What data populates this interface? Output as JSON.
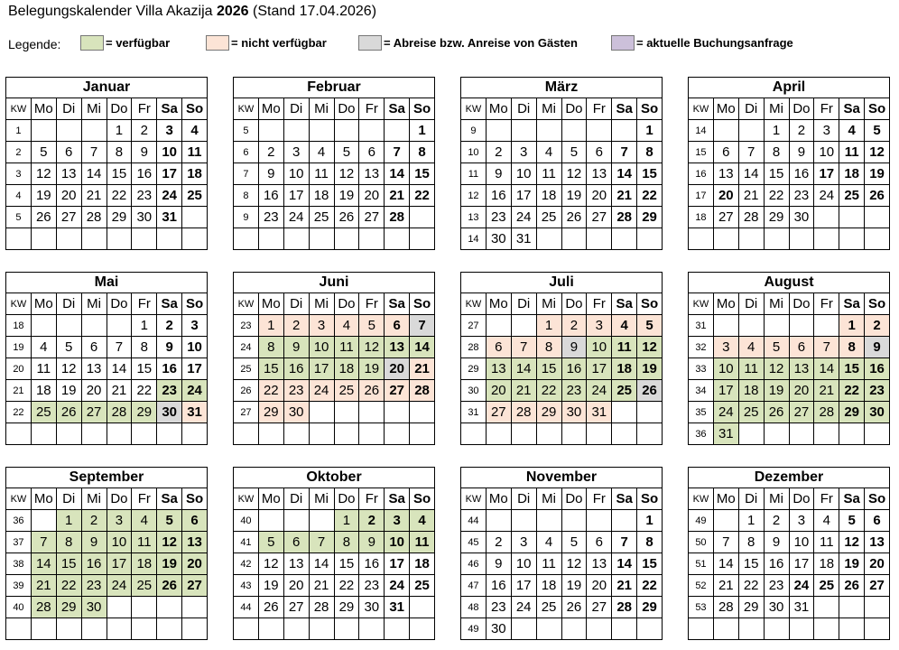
{
  "title": {
    "prefix": "Belegungskalender Villa Akazija",
    "year": "2026",
    "suffix": "(Stand 17.04.2026)"
  },
  "legend": {
    "label": "Legende:",
    "items": [
      {
        "key": "available",
        "text": "= verfügbar",
        "color": "#d8e4bc"
      },
      {
        "key": "unavailable",
        "text": "= nicht verfügbar",
        "color": "#fce4d6"
      },
      {
        "key": "change",
        "text": "= Abreise bzw. Anreise von Gästen",
        "color": "#d9d9d9"
      },
      {
        "key": "request",
        "text": "= aktuelle Buchungsanfrage",
        "color": "#ccc0da"
      }
    ]
  },
  "kw_label": "KW",
  "weekdays": [
    "Mo",
    "Di",
    "Mi",
    "Do",
    "Fr",
    "Sa",
    "So"
  ],
  "months": [
    {
      "name": "Januar",
      "rows": [
        [
          1,
          null,
          null,
          null,
          1,
          2,
          3,
          4
        ],
        [
          2,
          5,
          6,
          7,
          8,
          9,
          10,
          11
        ],
        [
          3,
          12,
          13,
          14,
          15,
          16,
          17,
          18
        ],
        [
          4,
          19,
          20,
          21,
          22,
          23,
          24,
          25
        ],
        [
          5,
          26,
          27,
          28,
          29,
          30,
          31,
          null
        ]
      ],
      "status": {},
      "holidays": []
    },
    {
      "name": "Februar",
      "rows": [
        [
          5,
          null,
          null,
          null,
          null,
          null,
          null,
          1
        ],
        [
          6,
          2,
          3,
          4,
          5,
          6,
          7,
          8
        ],
        [
          7,
          9,
          10,
          11,
          12,
          13,
          14,
          15
        ],
        [
          8,
          16,
          17,
          18,
          19,
          20,
          21,
          22
        ],
        [
          9,
          23,
          24,
          25,
          26,
          27,
          28,
          null
        ]
      ],
      "status": {},
      "holidays": []
    },
    {
      "name": "März",
      "rows": [
        [
          9,
          null,
          null,
          null,
          null,
          null,
          null,
          1
        ],
        [
          10,
          2,
          3,
          4,
          5,
          6,
          7,
          8
        ],
        [
          11,
          9,
          10,
          11,
          12,
          13,
          14,
          15
        ],
        [
          12,
          16,
          17,
          18,
          19,
          20,
          21,
          22
        ],
        [
          13,
          23,
          24,
          25,
          26,
          27,
          28,
          29
        ],
        [
          14,
          30,
          31,
          null,
          null,
          null,
          null,
          null
        ]
      ],
      "status": {},
      "holidays": []
    },
    {
      "name": "April",
      "rows": [
        [
          14,
          null,
          null,
          1,
          2,
          3,
          4,
          5
        ],
        [
          15,
          6,
          7,
          8,
          9,
          10,
          11,
          12
        ],
        [
          16,
          13,
          14,
          15,
          16,
          17,
          18,
          19
        ],
        [
          17,
          20,
          21,
          22,
          23,
          24,
          25,
          26
        ],
        [
          18,
          27,
          28,
          29,
          30,
          null,
          null,
          null
        ]
      ],
      "status": {},
      "holidays": [
        17,
        20
      ]
    },
    {
      "name": "Mai",
      "rows": [
        [
          18,
          null,
          null,
          null,
          null,
          1,
          2,
          3
        ],
        [
          19,
          4,
          5,
          6,
          7,
          8,
          9,
          10
        ],
        [
          20,
          11,
          12,
          13,
          14,
          15,
          16,
          17
        ],
        [
          21,
          18,
          19,
          20,
          21,
          22,
          23,
          24
        ],
        [
          22,
          25,
          26,
          27,
          28,
          29,
          30,
          31
        ]
      ],
      "status": {
        "available": [
          [
            23,
            29
          ]
        ],
        "change": [
          [
            30,
            30
          ]
        ],
        "unavailable": [
          [
            31,
            31
          ]
        ]
      },
      "holidays": []
    },
    {
      "name": "Juni",
      "rows": [
        [
          23,
          1,
          2,
          3,
          4,
          5,
          6,
          7
        ],
        [
          24,
          8,
          9,
          10,
          11,
          12,
          13,
          14
        ],
        [
          25,
          15,
          16,
          17,
          18,
          19,
          20,
          21
        ],
        [
          26,
          22,
          23,
          24,
          25,
          26,
          27,
          28
        ],
        [
          27,
          29,
          30,
          null,
          null,
          null,
          null,
          null
        ]
      ],
      "status": {
        "unavailable": [
          [
            1,
            6
          ],
          [
            21,
            30
          ]
        ],
        "change": [
          [
            7,
            7
          ],
          [
            20,
            20
          ]
        ],
        "available": [
          [
            8,
            19
          ]
        ]
      },
      "holidays": []
    },
    {
      "name": "Juli",
      "rows": [
        [
          27,
          null,
          null,
          1,
          2,
          3,
          4,
          5
        ],
        [
          28,
          6,
          7,
          8,
          9,
          10,
          11,
          12
        ],
        [
          29,
          13,
          14,
          15,
          16,
          17,
          18,
          19
        ],
        [
          30,
          20,
          21,
          22,
          23,
          24,
          25,
          26
        ],
        [
          31,
          27,
          28,
          29,
          30,
          31,
          null,
          null
        ]
      ],
      "status": {
        "unavailable": [
          [
            1,
            8
          ],
          [
            27,
            31
          ]
        ],
        "change": [
          [
            9,
            9
          ],
          [
            26,
            26
          ]
        ],
        "available": [
          [
            10,
            25
          ]
        ]
      },
      "holidays": []
    },
    {
      "name": "August",
      "rows": [
        [
          31,
          null,
          null,
          null,
          null,
          null,
          1,
          2
        ],
        [
          32,
          3,
          4,
          5,
          6,
          7,
          8,
          9
        ],
        [
          33,
          10,
          11,
          12,
          13,
          14,
          15,
          16
        ],
        [
          34,
          17,
          18,
          19,
          20,
          21,
          22,
          23
        ],
        [
          35,
          24,
          25,
          26,
          27,
          28,
          29,
          30
        ],
        [
          36,
          31,
          null,
          null,
          null,
          null,
          null,
          null
        ]
      ],
      "status": {
        "unavailable": [
          [
            1,
            8
          ]
        ],
        "change": [
          [
            9,
            9
          ]
        ],
        "available": [
          [
            10,
            31
          ]
        ]
      },
      "holidays": []
    },
    {
      "name": "September",
      "rows": [
        [
          36,
          null,
          1,
          2,
          3,
          4,
          5,
          6
        ],
        [
          37,
          7,
          8,
          9,
          10,
          11,
          12,
          13
        ],
        [
          38,
          14,
          15,
          16,
          17,
          18,
          19,
          20
        ],
        [
          39,
          21,
          22,
          23,
          24,
          25,
          26,
          27
        ],
        [
          40,
          28,
          29,
          30,
          null,
          null,
          null,
          null
        ]
      ],
      "status": {
        "available": [
          [
            1,
            30
          ]
        ]
      },
      "holidays": []
    },
    {
      "name": "Oktober",
      "rows": [
        [
          40,
          null,
          null,
          null,
          1,
          2,
          3,
          4
        ],
        [
          41,
          5,
          6,
          7,
          8,
          9,
          10,
          11
        ],
        [
          42,
          12,
          13,
          14,
          15,
          16,
          17,
          18
        ],
        [
          43,
          19,
          20,
          21,
          22,
          23,
          24,
          25
        ],
        [
          44,
          26,
          27,
          28,
          29,
          30,
          31,
          null
        ]
      ],
      "status": {
        "available": [
          [
            1,
            11
          ]
        ]
      },
      "holidays": [
        2
      ]
    },
    {
      "name": "November",
      "rows": [
        [
          44,
          null,
          null,
          null,
          null,
          null,
          null,
          1
        ],
        [
          45,
          2,
          3,
          4,
          5,
          6,
          7,
          8
        ],
        [
          46,
          9,
          10,
          11,
          12,
          13,
          14,
          15
        ],
        [
          47,
          16,
          17,
          18,
          19,
          20,
          21,
          22
        ],
        [
          48,
          23,
          24,
          25,
          26,
          27,
          28,
          29
        ],
        [
          49,
          30,
          null,
          null,
          null,
          null,
          null,
          null
        ]
      ],
      "status": {},
      "holidays": []
    },
    {
      "name": "Dezember",
      "rows": [
        [
          49,
          null,
          1,
          2,
          3,
          4,
          5,
          6
        ],
        [
          50,
          7,
          8,
          9,
          10,
          11,
          12,
          13
        ],
        [
          51,
          14,
          15,
          16,
          17,
          18,
          19,
          20
        ],
        [
          52,
          21,
          22,
          23,
          24,
          25,
          26,
          27
        ],
        [
          53,
          28,
          29,
          30,
          31,
          null,
          null,
          null
        ]
      ],
      "status": {},
      "holidays": [
        24,
        25
      ]
    }
  ]
}
